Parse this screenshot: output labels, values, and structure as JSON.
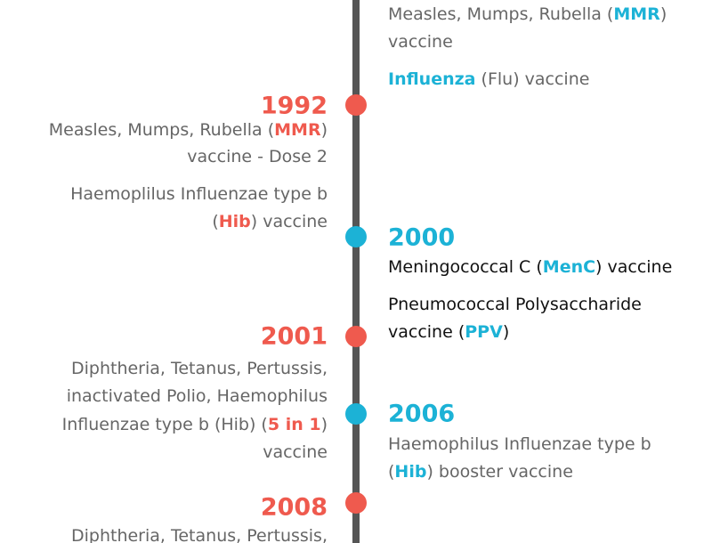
{
  "timeline": {
    "entries": [
      {
        "color": "#1cb2d6",
        "text_color": "#666666",
        "items": [
          [
            [
              "Measles, Mumps, Rubella (",
              {
                "text": "MMR",
                "highlight": true
              },
              ")"
            ],
            [
              "vaccine"
            ]
          ],
          [
            [
              {
                "text": "Influenza",
                "highlight": true
              },
              " (Flu) vaccine"
            ]
          ]
        ]
      },
      {
        "year": "1992",
        "color": "#ef5a4e",
        "text_color": "#666666",
        "items": [
          [
            [
              "Measles, Mumps, Rubella (",
              {
                "text": "MMR",
                "highlight": true
              },
              ")"
            ],
            [
              "vaccine - Dose 2"
            ]
          ],
          [
            [
              "Haemoplilus Influenzae type b"
            ],
            [
              "(",
              {
                "text": "Hib",
                "highlight": true
              },
              ") vaccine"
            ]
          ]
        ]
      },
      {
        "year": "2000",
        "color": "#1cb2d6",
        "text_color": "#111111",
        "items": [
          [
            [
              "Meningococcal C (",
              {
                "text": "MenC",
                "highlight": true
              },
              ") vaccine"
            ]
          ],
          [
            [
              "Pneumococcal Polysaccharide"
            ],
            [
              "vaccine (",
              {
                "text": "PPV",
                "highlight": true
              },
              ")"
            ]
          ]
        ]
      },
      {
        "year": "2001",
        "color": "#ef5a4e",
        "text_color": "#666666",
        "items": [
          [
            [
              "Diphtheria, Tetanus, Pertussis,"
            ],
            [
              "inactivated Polio, Haemophilus"
            ],
            [
              "Influenzae type b (Hib) (",
              {
                "text": "5 in 1",
                "highlight": true
              },
              ")"
            ],
            [
              "vaccine"
            ]
          ]
        ]
      },
      {
        "year": "2006",
        "color": "#1cb2d6",
        "text_color": "#666666",
        "items": [
          [
            [
              "Haemophilus Influenzae type b"
            ],
            [
              "(",
              {
                "text": "Hib",
                "highlight": true
              },
              ") booster vaccine"
            ]
          ]
        ]
      },
      {
        "year": "2008",
        "color": "#ef5a4e",
        "text_color": "#666666",
        "items": [
          [
            [
              "Diphtheria, Tetanus, Pertussis,"
            ]
          ]
        ]
      }
    ]
  }
}
